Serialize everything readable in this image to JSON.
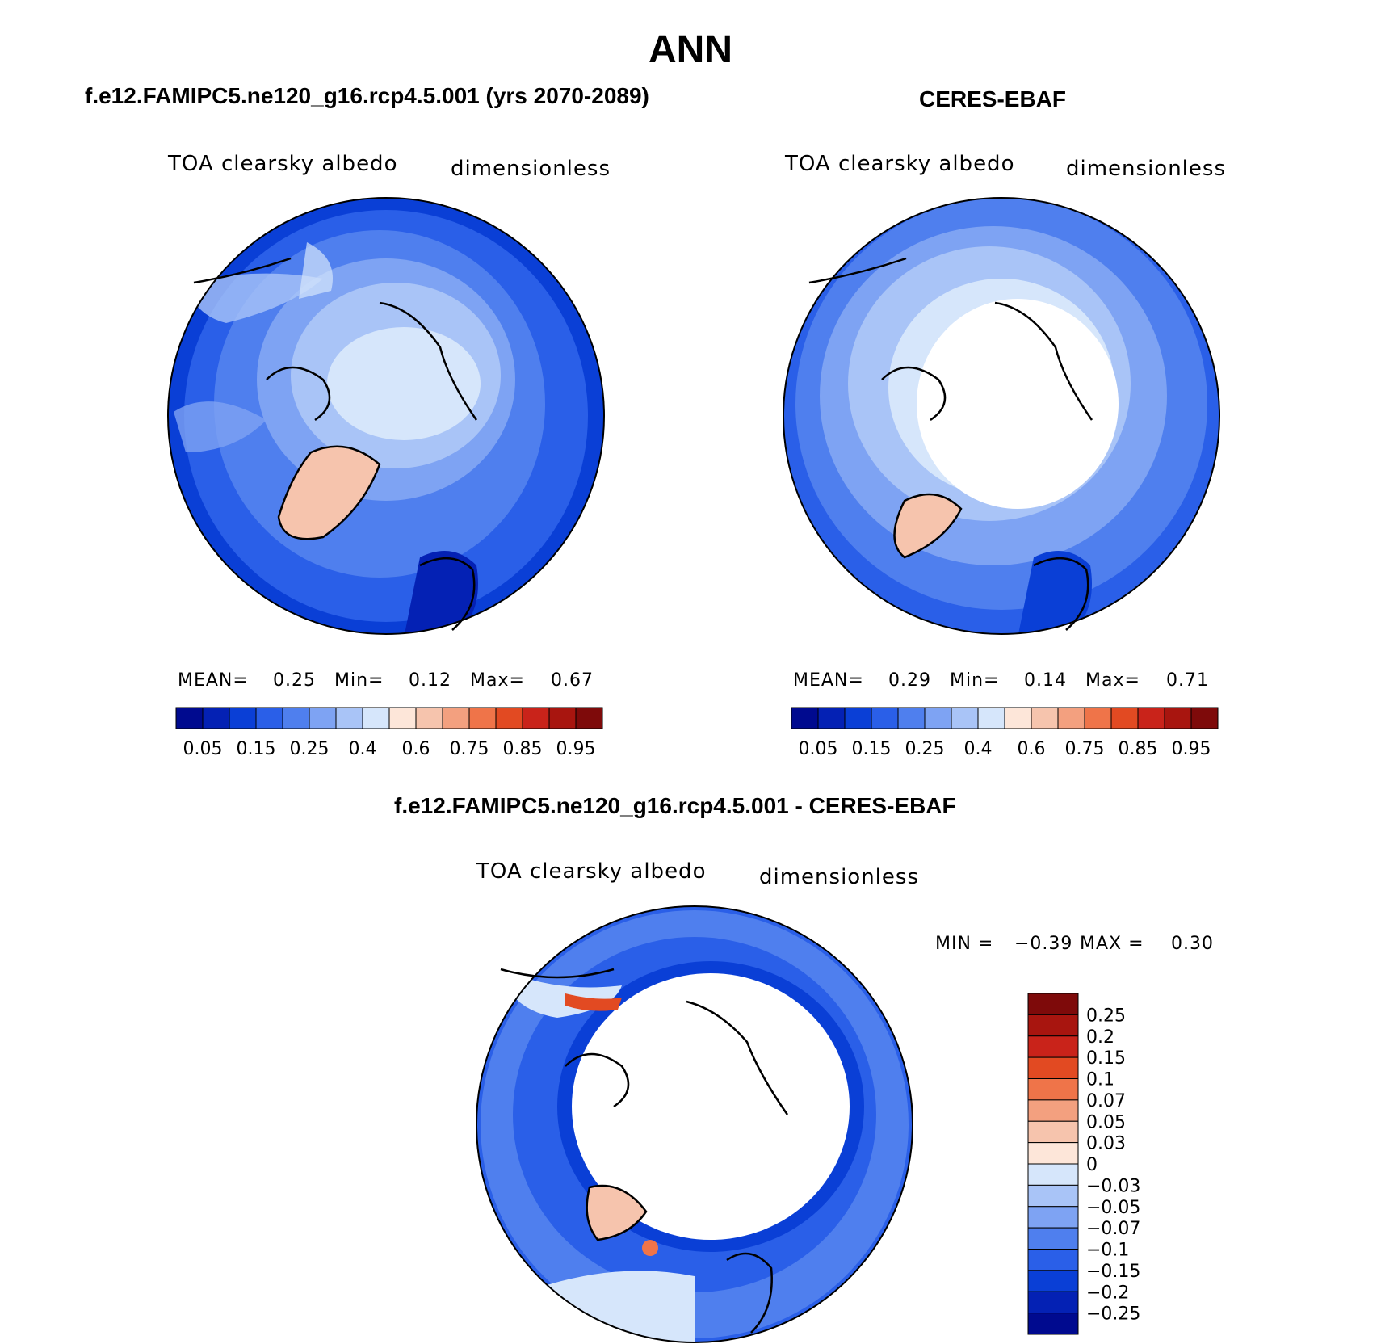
{
  "main_title": "ANN",
  "colors": {
    "ocean_deep": "#0a3fd6",
    "ocean_mid": "#2a5fe8",
    "ocean_light": "#4f7fee",
    "ice_light": "#a9c4f7",
    "ice_pale": "#d6e6fb",
    "land_pos": "#f6c4ad",
    "warm_red": "#c9231a",
    "coast": "#000000"
  },
  "panels": {
    "model": {
      "title": "f.e12.FAMIPC5.ne120_g16.rcp4.5.001 (yrs 2070-2089)",
      "variable": "TOA clearsky albedo",
      "units": "dimensionless",
      "stats": {
        "mean_label": "MEAN=",
        "mean": "0.25",
        "min_label": "Min=",
        "min": "0.12",
        "max_label": "Max=",
        "max": "0.67"
      }
    },
    "obs": {
      "title": "CERES-EBAF",
      "variable": "TOA clearsky albedo",
      "units": "dimensionless",
      "stats": {
        "mean_label": "MEAN=",
        "mean": "0.29",
        "min_label": "Min=",
        "min": "0.14",
        "max_label": "Max=",
        "max": "0.71"
      }
    },
    "diff": {
      "title": "f.e12.FAMIPC5.ne120_g16.rcp4.5.001 - CERES-EBAF",
      "variable": "TOA clearsky albedo",
      "units": "dimensionless",
      "min_label": "MIN =",
      "min": "−0.39",
      "max_label": "MAX =",
      "max": "0.30"
    }
  },
  "chart_data": [
    {
      "type": "heatmap",
      "title": "f.e12.FAMIPC5.ne120_g16.rcp4.5.001 (yrs 2070-2089)",
      "projection": "north-polar-stereographic",
      "variable": "TOA clearsky albedo",
      "units": "dimensionless",
      "mean": 0.25,
      "min": 0.12,
      "max": 0.67,
      "colorbar": {
        "tick_labels": [
          "0.05",
          "0.15",
          "0.25",
          "0.4",
          "0.6",
          "0.75",
          "0.85",
          "0.95"
        ],
        "colors": [
          "#000a8f",
          "#0421b4",
          "#0a3fd6",
          "#2a5fe8",
          "#4f7fee",
          "#7ea3f3",
          "#a9c4f7",
          "#d6e6fb",
          "#fde6d9",
          "#f6c4ad",
          "#f3a07f",
          "#ef7449",
          "#e24a22",
          "#c9231a",
          "#a8150f",
          "#7e0a0a"
        ]
      }
    },
    {
      "type": "heatmap",
      "title": "CERES-EBAF",
      "projection": "north-polar-stereographic",
      "variable": "TOA clearsky albedo",
      "units": "dimensionless",
      "mean": 0.29,
      "min": 0.14,
      "max": 0.71,
      "colorbar": {
        "tick_labels": [
          "0.05",
          "0.15",
          "0.25",
          "0.4",
          "0.6",
          "0.75",
          "0.85",
          "0.95"
        ],
        "colors": [
          "#000a8f",
          "#0421b4",
          "#0a3fd6",
          "#2a5fe8",
          "#4f7fee",
          "#7ea3f3",
          "#a9c4f7",
          "#d6e6fb",
          "#fde6d9",
          "#f6c4ad",
          "#f3a07f",
          "#ef7449",
          "#e24a22",
          "#c9231a",
          "#a8150f",
          "#7e0a0a"
        ]
      }
    },
    {
      "type": "heatmap",
      "title": "f.e12.FAMIPC5.ne120_g16.rcp4.5.001 - CERES-EBAF",
      "projection": "north-polar-stereographic",
      "variable": "TOA clearsky albedo",
      "units": "dimensionless",
      "min": -0.39,
      "max": 0.3,
      "colorbar": {
        "orientation": "vertical",
        "tick_labels": [
          "0.25",
          "0.2",
          "0.15",
          "0.1",
          "0.07",
          "0.05",
          "0.03",
          "0",
          "−0.03",
          "−0.05",
          "−0.07",
          "−0.1",
          "−0.15",
          "−0.2",
          "−0.25"
        ],
        "colors": [
          "#7e0a0a",
          "#a8150f",
          "#c9231a",
          "#e24a22",
          "#ef7449",
          "#f3a07f",
          "#f6c4ad",
          "#fde6d9",
          "#d6e6fb",
          "#a9c4f7",
          "#7ea3f3",
          "#4f7fee",
          "#2a5fe8",
          "#0a3fd6",
          "#0421b4",
          "#000a8f"
        ]
      }
    }
  ]
}
